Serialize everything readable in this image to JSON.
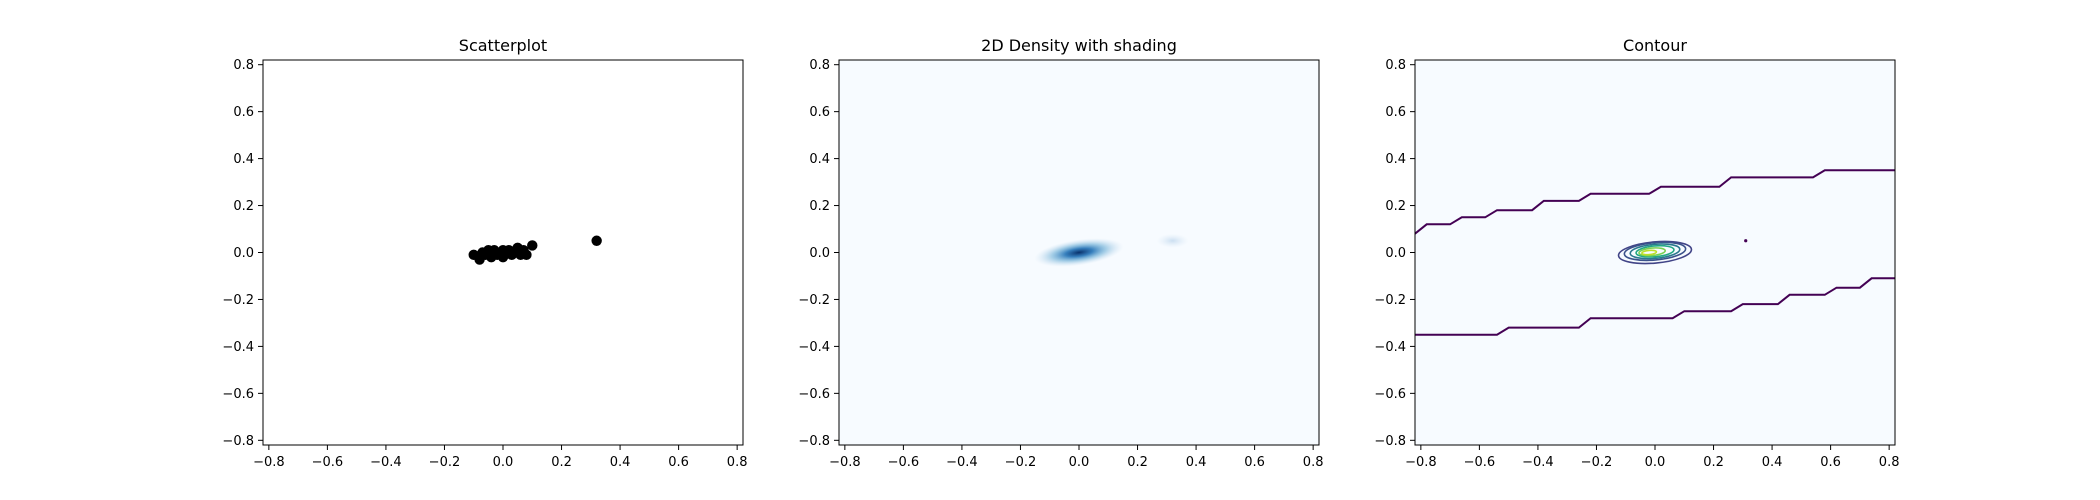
{
  "chart_data": [
    {
      "type": "scatter",
      "title": "Scatterplot",
      "xlim": [
        -0.82,
        0.82
      ],
      "ylim": [
        -0.82,
        0.82
      ],
      "xticks": [
        "−0.8",
        "−0.6",
        "−0.4",
        "−0.2",
        "0.0",
        "0.2",
        "0.4",
        "0.6",
        "0.8"
      ],
      "yticks": [
        "−0.8",
        "−0.6",
        "−0.4",
        "−0.2",
        "0.0",
        "0.2",
        "0.4",
        "0.6",
        "0.8"
      ],
      "marker_color": "#000000",
      "points": [
        {
          "x": -0.1,
          "y": -0.01
        },
        {
          "x": -0.08,
          "y": -0.03
        },
        {
          "x": -0.07,
          "y": 0.0
        },
        {
          "x": -0.06,
          "y": -0.01
        },
        {
          "x": -0.05,
          "y": 0.01
        },
        {
          "x": -0.04,
          "y": -0.02
        },
        {
          "x": -0.03,
          "y": 0.01
        },
        {
          "x": -0.02,
          "y": -0.01
        },
        {
          "x": -0.01,
          "y": 0.0
        },
        {
          "x": 0.0,
          "y": 0.01
        },
        {
          "x": 0.0,
          "y": -0.02
        },
        {
          "x": 0.01,
          "y": 0.0
        },
        {
          "x": 0.02,
          "y": 0.01
        },
        {
          "x": 0.03,
          "y": -0.01
        },
        {
          "x": 0.04,
          "y": 0.0
        },
        {
          "x": 0.05,
          "y": 0.02
        },
        {
          "x": 0.06,
          "y": -0.01
        },
        {
          "x": 0.07,
          "y": 0.01
        },
        {
          "x": 0.08,
          "y": -0.01
        },
        {
          "x": 0.1,
          "y": 0.03
        },
        {
          "x": 0.32,
          "y": 0.05
        }
      ]
    },
    {
      "type": "heatmap",
      "title": "2D Density with shading",
      "xlim": [
        -0.82,
        0.82
      ],
      "ylim": [
        -0.82,
        0.82
      ],
      "xticks": [
        "−0.8",
        "−0.6",
        "−0.4",
        "−0.2",
        "0.0",
        "0.2",
        "0.4",
        "0.6",
        "0.8"
      ],
      "yticks": [
        "−0.8",
        "−0.6",
        "−0.4",
        "−0.2",
        "0.0",
        "0.2",
        "0.4",
        "0.6",
        "0.8"
      ],
      "colormap": "Blues",
      "background_color": "#f7fbff",
      "density_peaks": [
        {
          "x": 0.0,
          "y": 0.0,
          "relative_intensity": 1.0
        },
        {
          "x": 0.32,
          "y": 0.05,
          "relative_intensity": 0.15
        }
      ]
    },
    {
      "type": "contour",
      "title": "Contour",
      "xlim": [
        -0.82,
        0.82
      ],
      "ylim": [
        -0.82,
        0.82
      ],
      "xticks": [
        "−0.8",
        "−0.6",
        "−0.4",
        "−0.2",
        "0.0",
        "0.2",
        "0.4",
        "0.6",
        "0.8"
      ],
      "yticks": [
        "−0.8",
        "−0.6",
        "−0.4",
        "−0.2",
        "0.0",
        "0.2",
        "0.4",
        "0.6",
        "0.8"
      ],
      "colormap": "viridis",
      "background_color": "#f7fbff",
      "outer_band_upper": [
        [
          -0.82,
          0.08
        ],
        [
          -0.78,
          0.12
        ],
        [
          -0.7,
          0.12
        ],
        [
          -0.66,
          0.15
        ],
        [
          -0.58,
          0.15
        ],
        [
          -0.54,
          0.18
        ],
        [
          -0.42,
          0.18
        ],
        [
          -0.38,
          0.22
        ],
        [
          -0.26,
          0.22
        ],
        [
          -0.22,
          0.25
        ],
        [
          -0.02,
          0.25
        ],
        [
          0.02,
          0.28
        ],
        [
          0.22,
          0.28
        ],
        [
          0.26,
          0.32
        ],
        [
          0.54,
          0.32
        ],
        [
          0.58,
          0.35
        ],
        [
          0.82,
          0.35
        ]
      ],
      "outer_band_lower": [
        [
          -0.82,
          -0.35
        ],
        [
          -0.54,
          -0.35
        ],
        [
          -0.5,
          -0.32
        ],
        [
          -0.26,
          -0.32
        ],
        [
          -0.22,
          -0.28
        ],
        [
          0.06,
          -0.28
        ],
        [
          0.1,
          -0.25
        ],
        [
          0.26,
          -0.25
        ],
        [
          0.3,
          -0.22
        ],
        [
          0.42,
          -0.22
        ],
        [
          0.46,
          -0.18
        ],
        [
          0.58,
          -0.18
        ],
        [
          0.62,
          -0.15
        ],
        [
          0.7,
          -0.15
        ],
        [
          0.74,
          -0.11
        ],
        [
          0.82,
          -0.11
        ]
      ],
      "levels": [
        {
          "cx": 0.0,
          "cy": 0.0,
          "rx": 0.125,
          "ry": 0.045,
          "color": "#414487"
        },
        {
          "cx": 0.0,
          "cy": 0.005,
          "rx": 0.105,
          "ry": 0.037,
          "color": "#3b528b"
        },
        {
          "cx": 0.0,
          "cy": 0.005,
          "rx": 0.085,
          "ry": 0.03,
          "color": "#2a788e"
        },
        {
          "cx": 0.0,
          "cy": 0.005,
          "rx": 0.065,
          "ry": 0.023,
          "color": "#22a884"
        },
        {
          "cx": -0.01,
          "cy": 0.003,
          "rx": 0.045,
          "ry": 0.016,
          "color": "#7ad151"
        },
        {
          "cx": -0.02,
          "cy": 0.0,
          "rx": 0.025,
          "ry": 0.009,
          "color": "#bddf26"
        }
      ],
      "outer_band_color": "#440154",
      "secondary_peak": {
        "x": 0.31,
        "y": 0.05,
        "color": "#440154"
      }
    }
  ]
}
